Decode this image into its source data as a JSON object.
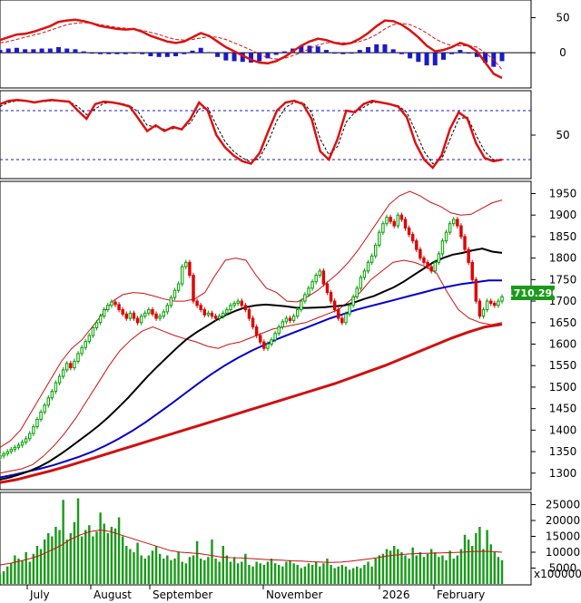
{
  "colors": {
    "background": "#ffffff",
    "frame": "#000000",
    "price_up": "#00a000",
    "price_down": "#e00000",
    "ma_short": "#000000",
    "ma_mid": "#0000cc",
    "ma_long": "#d01010",
    "bollinger": "#d01010",
    "macd": "#dd1010",
    "macd_signal": "#dd1010",
    "macd_hist": "#1a1acc",
    "stoch_k": "#dd1010",
    "stoch_d": "#000000",
    "stoch_levels": "#1a1acc",
    "volume_bar": "#1a9a1a",
    "volume_ma": "#cc1010",
    "last_price_box": "#1a9a1a",
    "last_price_text": "#ffffff"
  },
  "macd_panel": {
    "type": "line+histogram",
    "ticks": [
      "50",
      "0"
    ],
    "tick_values": [
      50,
      0
    ],
    "ylim": [
      -45,
      70
    ],
    "macd": [
      18,
      22,
      26,
      27,
      30,
      34,
      38,
      44,
      46,
      47,
      45,
      42,
      38,
      36,
      34,
      33,
      34,
      30,
      24,
      20,
      16,
      14,
      16,
      22,
      28,
      24,
      16,
      8,
      2,
      -4,
      -10,
      -14,
      -15,
      -12,
      -6,
      2,
      10,
      16,
      20,
      18,
      14,
      12,
      14,
      20,
      28,
      38,
      46,
      45,
      40,
      32,
      22,
      10,
      2,
      4,
      8,
      14,
      10,
      2,
      -14,
      -30,
      -36
    ],
    "signal": [
      14,
      16,
      19,
      22,
      25,
      28,
      32,
      36,
      40,
      42,
      43,
      42,
      40,
      38,
      36,
      35,
      34,
      32,
      29,
      26,
      22,
      19,
      18,
      19,
      21,
      23,
      22,
      19,
      14,
      9,
      4,
      -2,
      -7,
      -9,
      -8,
      -4,
      0,
      6,
      11,
      14,
      15,
      14,
      14,
      16,
      20,
      26,
      34,
      40,
      42,
      40,
      35,
      28,
      20,
      14,
      10,
      10,
      10,
      8,
      0,
      -10,
      -24
    ],
    "histogram": [
      4,
      6,
      7,
      5,
      5,
      6,
      6,
      8,
      6,
      5,
      2,
      0,
      -2,
      -2,
      -2,
      -2,
      0,
      -2,
      -5,
      -6,
      -6,
      -5,
      -2,
      3,
      7,
      1,
      -6,
      -11,
      -12,
      -13,
      -14,
      -12,
      -8,
      -3,
      2,
      6,
      10,
      10,
      9,
      4,
      -1,
      -2,
      0,
      4,
      8,
      12,
      12,
      5,
      -2,
      -8,
      -13,
      -18,
      -18,
      -10,
      -2,
      4,
      0,
      -6,
      -14,
      -20,
      -12
    ]
  },
  "stoch_panel": {
    "type": "line",
    "ticks": [
      "50"
    ],
    "tick_values": [
      50
    ],
    "ylim": [
      0,
      100
    ],
    "levels": [
      80,
      20
    ],
    "k": [
      88,
      92,
      93,
      92,
      90,
      92,
      93,
      92,
      91,
      80,
      70,
      88,
      91,
      90,
      88,
      85,
      70,
      55,
      62,
      55,
      60,
      57,
      70,
      90,
      80,
      50,
      35,
      25,
      18,
      15,
      28,
      55,
      80,
      90,
      92,
      88,
      70,
      30,
      20,
      45,
      80,
      78,
      88,
      92,
      90,
      88,
      85,
      72,
      40,
      20,
      10,
      25,
      58,
      78,
      70,
      40,
      22,
      18,
      20
    ],
    "d": [
      85,
      90,
      92,
      92,
      91,
      91,
      92,
      92,
      91,
      85,
      75,
      82,
      89,
      90,
      89,
      86,
      78,
      62,
      60,
      57,
      58,
      58,
      65,
      82,
      84,
      62,
      42,
      30,
      22,
      17,
      22,
      42,
      68,
      84,
      90,
      90,
      78,
      45,
      26,
      36,
      66,
      78,
      84,
      90,
      90,
      88,
      86,
      78,
      55,
      30,
      15,
      20,
      45,
      70,
      72,
      50,
      30,
      20,
      19
    ]
  },
  "price_panel": {
    "type": "candlestick",
    "ticks": [
      "1950",
      "1900",
      "1850",
      "1800",
      "1750",
      "1700",
      "1650",
      "1600",
      "1550",
      "1500",
      "1450",
      "1400",
      "1350",
      "1300"
    ],
    "tick_values": [
      1950,
      1900,
      1850,
      1800,
      1750,
      1700,
      1650,
      1600,
      1550,
      1500,
      1450,
      1400,
      1350,
      1300
    ],
    "ylim": [
      1270,
      1970
    ],
    "last_price": "1710.290",
    "close": [
      1340,
      1345,
      1350,
      1355,
      1360,
      1365,
      1372,
      1380,
      1392,
      1408,
      1425,
      1442,
      1458,
      1475,
      1490,
      1510,
      1525,
      1540,
      1555,
      1545,
      1560,
      1578,
      1592,
      1606,
      1620,
      1638,
      1650,
      1665,
      1680,
      1690,
      1698,
      1692,
      1680,
      1670,
      1660,
      1672,
      1660,
      1650,
      1665,
      1672,
      1680,
      1670,
      1660,
      1665,
      1675,
      1690,
      1708,
      1725,
      1740,
      1780,
      1790,
      1760,
      1700,
      1690,
      1680,
      1668,
      1672,
      1665,
      1660,
      1665,
      1672,
      1680,
      1690,
      1695,
      1700,
      1690,
      1680,
      1660,
      1640,
      1620,
      1605,
      1590,
      1600,
      1610,
      1625,
      1640,
      1652,
      1660,
      1655,
      1665,
      1680,
      1700,
      1715,
      1730,
      1745,
      1760,
      1770,
      1740,
      1720,
      1700,
      1680,
      1660,
      1650,
      1670,
      1690,
      1710,
      1730,
      1755,
      1770,
      1790,
      1805,
      1830,
      1860,
      1880,
      1895,
      1885,
      1875,
      1900,
      1890,
      1870,
      1855,
      1840,
      1820,
      1800,
      1790,
      1780,
      1770,
      1790,
      1810,
      1840,
      1860,
      1880,
      1890,
      1875,
      1850,
      1820,
      1790,
      1750,
      1700,
      1665,
      1680,
      1700,
      1695,
      1690,
      1700,
      1710
    ],
    "ma_short": [
      1285,
      1290,
      1297,
      1305,
      1315,
      1327,
      1342,
      1358,
      1375,
      1392,
      1410,
      1430,
      1452,
      1475,
      1500,
      1525,
      1548,
      1570,
      1592,
      1612,
      1628,
      1642,
      1656,
      1668,
      1678,
      1686,
      1690,
      1692,
      1690,
      1688,
      1685,
      1684,
      1685,
      1686,
      1688,
      1690,
      1697,
      1705,
      1712,
      1722,
      1732,
      1745,
      1760,
      1775,
      1790,
      1800,
      1808,
      1812,
      1818,
      1822,
      1815,
      1812
    ],
    "ma_mid": [
      1290,
      1296,
      1303,
      1310,
      1318,
      1328,
      1338,
      1350,
      1364,
      1380,
      1398,
      1418,
      1440,
      1462,
      1485,
      1508,
      1530,
      1550,
      1568,
      1584,
      1598,
      1612,
      1624,
      1636,
      1648,
      1660,
      1670,
      1680,
      1688,
      1696,
      1704,
      1712,
      1720,
      1728,
      1734,
      1740,
      1744,
      1748,
      1748
    ],
    "ma_long": [
      1278,
      1285,
      1295,
      1305,
      1316,
      1328,
      1340,
      1352,
      1364,
      1376,
      1388,
      1400,
      1412,
      1424,
      1436,
      1448,
      1460,
      1472,
      1484,
      1496,
      1508,
      1522,
      1536,
      1550,
      1566,
      1582,
      1598,
      1614,
      1628,
      1640,
      1646
    ],
    "bb_upper": [
      1360,
      1375,
      1400,
      1440,
      1480,
      1520,
      1560,
      1590,
      1610,
      1640,
      1670,
      1700,
      1715,
      1720,
      1718,
      1712,
      1705,
      1700,
      1700,
      1705,
      1720,
      1760,
      1795,
      1800,
      1795,
      1760,
      1730,
      1720,
      1700,
      1698,
      1710,
      1725,
      1745,
      1765,
      1790,
      1820,
      1855,
      1890,
      1925,
      1945,
      1955,
      1945,
      1930,
      1920,
      1905,
      1900,
      1902,
      1915,
      1928,
      1935
    ],
    "bb_lower": [
      1300,
      1305,
      1310,
      1320,
      1340,
      1365,
      1395,
      1430,
      1470,
      1510,
      1550,
      1585,
      1610,
      1630,
      1640,
      1630,
      1620,
      1612,
      1605,
      1595,
      1590,
      1600,
      1605,
      1615,
      1625,
      1635,
      1640,
      1645,
      1650,
      1660,
      1670,
      1680,
      1700,
      1720,
      1750,
      1770,
      1790,
      1795,
      1790,
      1780,
      1765,
      1720,
      1680,
      1660,
      1650,
      1645,
      1650
    ]
  },
  "volume_panel": {
    "type": "bar",
    "ticks": [
      "25000",
      "20000",
      "15000",
      "10000",
      "5000"
    ],
    "tick_values": [
      25000,
      20000,
      15000,
      10000,
      5000
    ],
    "ylim": [
      0,
      28000
    ],
    "unit_label": "x100000",
    "values": [
      3000,
      4000,
      5500,
      6500,
      9000,
      8000,
      7500,
      10000,
      7000,
      9500,
      12000,
      11000,
      14000,
      16000,
      15000,
      18000,
      17000,
      26500,
      14000,
      16000,
      19500,
      27000,
      15000,
      17000,
      18500,
      15000,
      16500,
      22500,
      19000,
      16000,
      18000,
      17500,
      21000,
      15000,
      12000,
      11000,
      10000,
      13000,
      9000,
      8000,
      9000,
      10500,
      12000,
      9500,
      8000,
      9000,
      7500,
      8000,
      10000,
      7000,
      6500,
      8500,
      9000,
      13500,
      8000,
      7500,
      8500,
      14000,
      8000,
      7000,
      12000,
      9000,
      7000,
      8500,
      6500,
      7000,
      9500,
      6000,
      5500,
      7000,
      6500,
      6000,
      7000,
      8000,
      6500,
      6000,
      5500,
      7000,
      7500,
      6500,
      6000,
      5000,
      5500,
      6500,
      6000,
      7000,
      5500,
      6500,
      8000,
      6000,
      5000,
      5500,
      6000,
      5500,
      4500,
      5000,
      5500,
      5000,
      6000,
      7000,
      5500,
      8000,
      9000,
      9500,
      11000,
      10500,
      12000,
      11000,
      10000,
      9000,
      8000,
      11500,
      9000,
      10000,
      8500,
      9500,
      11000,
      10000,
      8500,
      9000,
      7500,
      10500,
      8000,
      9000,
      11000,
      15500,
      14000,
      12000,
      16000,
      18000,
      11000,
      17000,
      12500,
      10000,
      8500,
      7500
    ],
    "ma": [
      6000,
      6500,
      7200,
      8000,
      9000,
      10500,
      12000,
      14000,
      15500,
      16500,
      17000,
      16500,
      15500,
      14500,
      13500,
      12500,
      11500,
      10500,
      10000,
      9800,
      9500,
      9000,
      8500,
      8300,
      8200,
      8000,
      7800,
      7600,
      7500,
      7300,
      7200,
      7000,
      6900,
      6800,
      6900,
      7200,
      7600,
      8000,
      8500,
      9000,
      9300,
      9500,
      9600,
      9700,
      9800,
      9900,
      10000,
      10200,
      10300,
      10200,
      10000
    ]
  },
  "x_axis": {
    "months": [
      "July",
      "August",
      "September",
      "November",
      "2026",
      "February"
    ]
  }
}
